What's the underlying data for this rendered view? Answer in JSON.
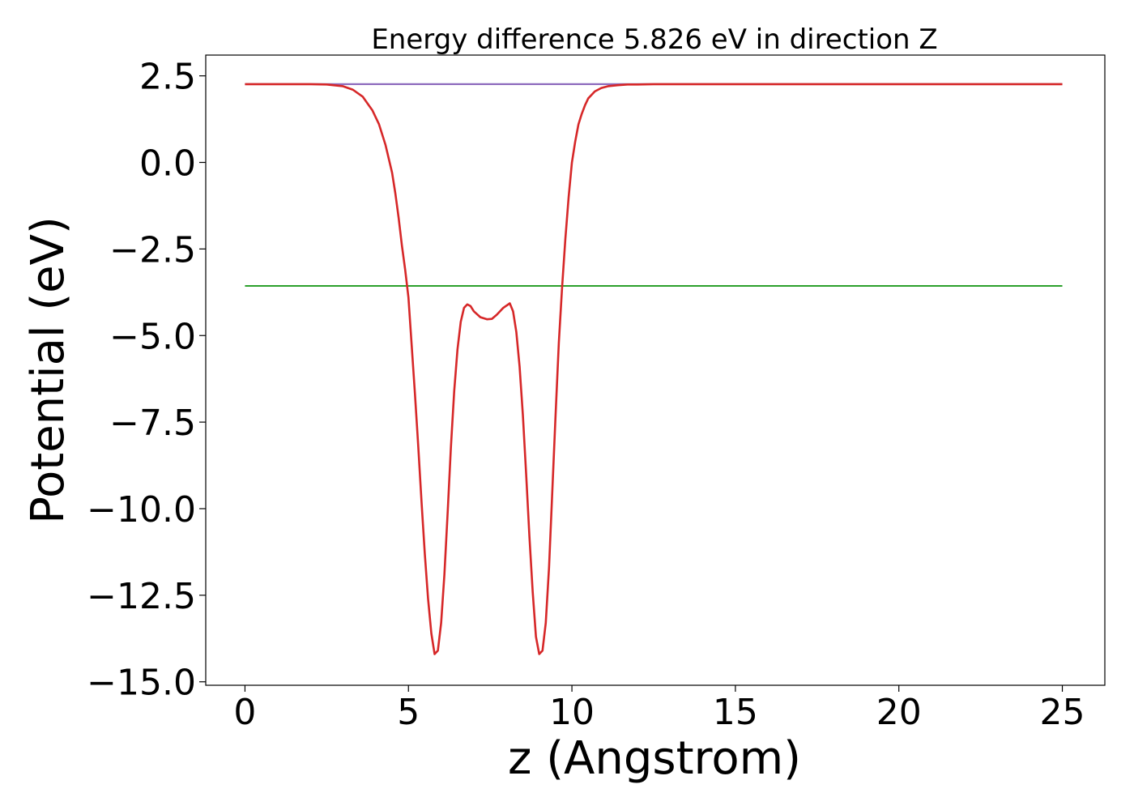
{
  "chart_data": {
    "type": "line",
    "title": "Energy difference 5.826 eV in direction Z",
    "xlabel": "z (Angstrom)",
    "ylabel": "Potential (eV)",
    "xlim": [
      -1.2,
      26.3
    ],
    "ylim": [
      -15.1,
      3.1
    ],
    "xticks": [
      0,
      5,
      10,
      15,
      20,
      25
    ],
    "xtick_labels": [
      "0",
      "5",
      "10",
      "15",
      "20",
      "25"
    ],
    "yticks": [
      2.5,
      0.0,
      -2.5,
      -5.0,
      -7.5,
      -10.0,
      -12.5,
      -15.0
    ],
    "ytick_labels": [
      "2.5",
      "0.0",
      "−2.5",
      "−5.0",
      "−7.5",
      "−10.0",
      "−12.5",
      "−15.0"
    ],
    "grid": false,
    "series": [
      {
        "color": "#1f77b4",
        "x": [
          0,
          25
        ],
        "y": [
          2.26,
          2.26
        ]
      },
      {
        "color": "#2ca02c",
        "x": [
          0,
          25
        ],
        "y": [
          -3.566,
          -3.566
        ]
      },
      {
        "color": "#9467bd",
        "x": [
          0,
          12.0,
          25
        ],
        "y": [
          2.26,
          2.26,
          2.26
        ]
      },
      {
        "color": "#d62728",
        "x": [
          0,
          1.0,
          2.0,
          2.5,
          3.0,
          3.3,
          3.6,
          3.9,
          4.1,
          4.3,
          4.5,
          4.6,
          4.7,
          4.8,
          4.9,
          5.0,
          5.1,
          5.2,
          5.3,
          5.4,
          5.5,
          5.6,
          5.7,
          5.8,
          5.9,
          6.0,
          6.1,
          6.2,
          6.3,
          6.4,
          6.5,
          6.6,
          6.7,
          6.8,
          6.9,
          7.0,
          7.2,
          7.4,
          7.55,
          7.7,
          7.9,
          8.1,
          8.2,
          8.3,
          8.4,
          8.5,
          8.6,
          8.7,
          8.8,
          8.9,
          9.0,
          9.1,
          9.2,
          9.3,
          9.4,
          9.5,
          9.6,
          9.7,
          9.8,
          9.9,
          10.0,
          10.1,
          10.2,
          10.3,
          10.4,
          10.5,
          10.7,
          10.9,
          11.1,
          11.4,
          11.7,
          12.0,
          12.5,
          13.0,
          15.0,
          20.0,
          25.0
        ],
        "y": [
          2.26,
          2.26,
          2.26,
          2.25,
          2.2,
          2.1,
          1.9,
          1.5,
          1.1,
          0.5,
          -0.3,
          -0.9,
          -1.6,
          -2.4,
          -3.1,
          -3.9,
          -5.3,
          -6.7,
          -8.2,
          -9.8,
          -11.3,
          -12.6,
          -13.6,
          -14.2,
          -14.1,
          -13.3,
          -11.9,
          -10.1,
          -8.2,
          -6.6,
          -5.4,
          -4.6,
          -4.2,
          -4.1,
          -4.15,
          -4.3,
          -4.47,
          -4.53,
          -4.52,
          -4.4,
          -4.2,
          -4.07,
          -4.3,
          -4.9,
          -5.9,
          -7.3,
          -9.0,
          -10.8,
          -12.4,
          -13.7,
          -14.2,
          -14.1,
          -13.3,
          -11.7,
          -9.5,
          -7.3,
          -5.2,
          -3.6,
          -2.2,
          -1.0,
          0.0,
          0.6,
          1.1,
          1.4,
          1.65,
          1.85,
          2.05,
          2.15,
          2.2,
          2.23,
          2.25,
          2.25,
          2.26,
          2.26,
          2.26,
          2.26,
          2.26
        ]
      }
    ]
  }
}
